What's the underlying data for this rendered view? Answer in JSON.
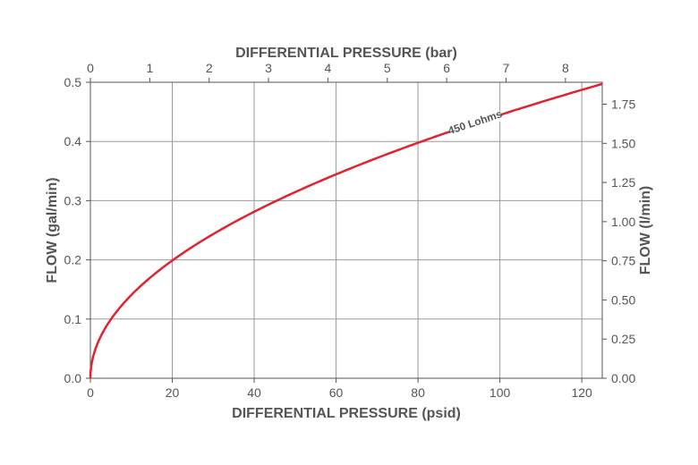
{
  "chart_data": {
    "type": "line",
    "xlabel": "DIFFERENTIAL PRESSURE (psid)",
    "x2label": "DIFFERENTIAL PRESSURE (bar)",
    "ylabel": "FLOW (gal/min)",
    "y2label": "FLOW (l/min)",
    "xlim": [
      0,
      125
    ],
    "ylim": [
      0,
      0.5
    ],
    "x2lim": [
      0,
      8.62
    ],
    "y2lim": [
      0,
      1.89
    ],
    "xticks": [
      "0",
      "20",
      "40",
      "60",
      "80",
      "100",
      "120"
    ],
    "yticks": [
      "0.0",
      "0.1",
      "0.2",
      "0.3",
      "0.4",
      "0.5"
    ],
    "x2ticks": [
      "0",
      "1",
      "2",
      "3",
      "4",
      "5",
      "6",
      "7",
      "8"
    ],
    "y2ticks": [
      "0.00",
      "0.25",
      "0.50",
      "0.75",
      "1.00",
      "1.25",
      "1.50",
      "1.75"
    ],
    "grid": true,
    "series": [
      {
        "name": "450 Lohms",
        "color": "#e0232e",
        "x": [
          0,
          1,
          2,
          5,
          10,
          20,
          40,
          60,
          80,
          100,
          125
        ],
        "y": [
          0,
          0.0444,
          0.0629,
          0.0994,
          0.1406,
          0.1989,
          0.2813,
          0.3445,
          0.3978,
          0.4447,
          0.4972
        ]
      }
    ],
    "colors": {
      "grid": "#9a9a9a",
      "axis": "#555555",
      "text": "#555555"
    }
  }
}
